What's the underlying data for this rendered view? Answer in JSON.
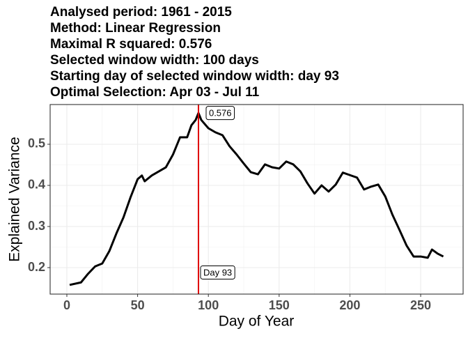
{
  "chart_data": {
    "type": "line",
    "title": [
      "Analysed period: 1961 - 2015",
      "Method: Linear Regression",
      "Maximal R squared: 0.576",
      "Selected window width: 100 days",
      "Starting day of selected window width: day 93",
      "Optimal Selection: Apr 03 - Jul 11"
    ],
    "x_label": "Day of Year",
    "y_label": "Explained Variance",
    "x": [
      2,
      10,
      15,
      20,
      25,
      30,
      35,
      40,
      45,
      50,
      53,
      55,
      60,
      65,
      70,
      75,
      80,
      85,
      88,
      91,
      93,
      95,
      100,
      105,
      110,
      115,
      120,
      125,
      130,
      135,
      140,
      145,
      150,
      155,
      160,
      165,
      170,
      175,
      180,
      185,
      190,
      195,
      200,
      205,
      210,
      215,
      220,
      225,
      230,
      235,
      240,
      245,
      250,
      255,
      258,
      262,
      266
    ],
    "series": [
      {
        "name": "Explained Variance",
        "color": "#000000",
        "values": [
          0.158,
          0.164,
          0.185,
          0.203,
          0.21,
          0.24,
          0.283,
          0.322,
          0.371,
          0.415,
          0.424,
          0.41,
          0.424,
          0.434,
          0.444,
          0.475,
          0.517,
          0.517,
          0.546,
          0.559,
          0.576,
          0.559,
          0.539,
          0.529,
          0.522,
          0.495,
          0.475,
          0.453,
          0.432,
          0.427,
          0.451,
          0.444,
          0.441,
          0.458,
          0.451,
          0.434,
          0.405,
          0.38,
          0.4,
          0.385,
          0.402,
          0.431,
          0.425,
          0.419,
          0.39,
          0.397,
          0.402,
          0.373,
          0.329,
          0.292,
          0.254,
          0.227,
          0.227,
          0.224,
          0.244,
          0.234,
          0.227
        ]
      }
    ],
    "xlim": [
      -11.8,
      280
    ],
    "ylim": [
      0.1356,
      0.5966
    ],
    "xticks": [
      0,
      50,
      100,
      150,
      200,
      250
    ],
    "yticks": [
      0.2,
      0.3,
      0.4,
      0.5
    ],
    "grid": true,
    "vline": {
      "x": 93,
      "color": "#e00000",
      "label": "Day 93"
    },
    "peak": {
      "x": 93,
      "y": 0.576,
      "label": "0.576"
    }
  }
}
